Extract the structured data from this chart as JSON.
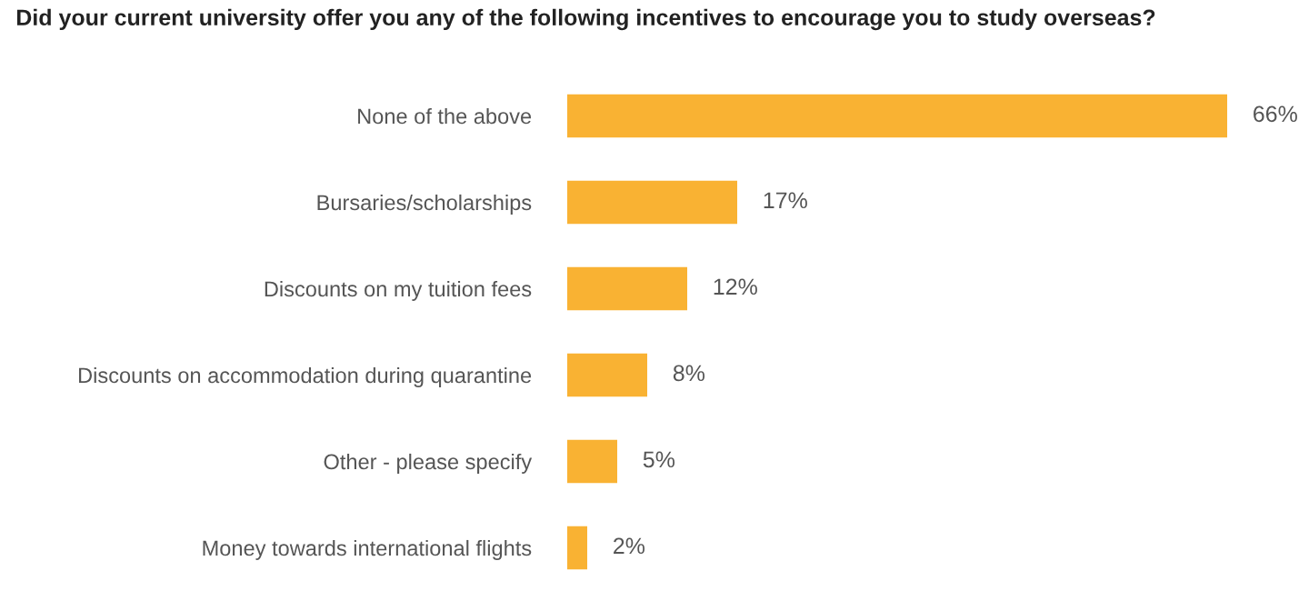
{
  "chart_data": {
    "type": "bar",
    "orientation": "horizontal",
    "title": "Did your current university offer you any of the following incentives to encourage you to study overseas?",
    "categories": [
      "None of the above",
      "Bursaries/scholarships",
      "Discounts on my tuition fees",
      "Discounts on accommodation during quarantine",
      "Other - please specify",
      "Money towards international flights"
    ],
    "values": [
      66,
      17,
      12,
      8,
      5,
      2
    ],
    "value_labels": [
      "66%",
      "17%",
      "12%",
      "8%",
      "5%",
      "2%"
    ],
    "color": "#f9b233",
    "grid": false,
    "legend": false
  }
}
